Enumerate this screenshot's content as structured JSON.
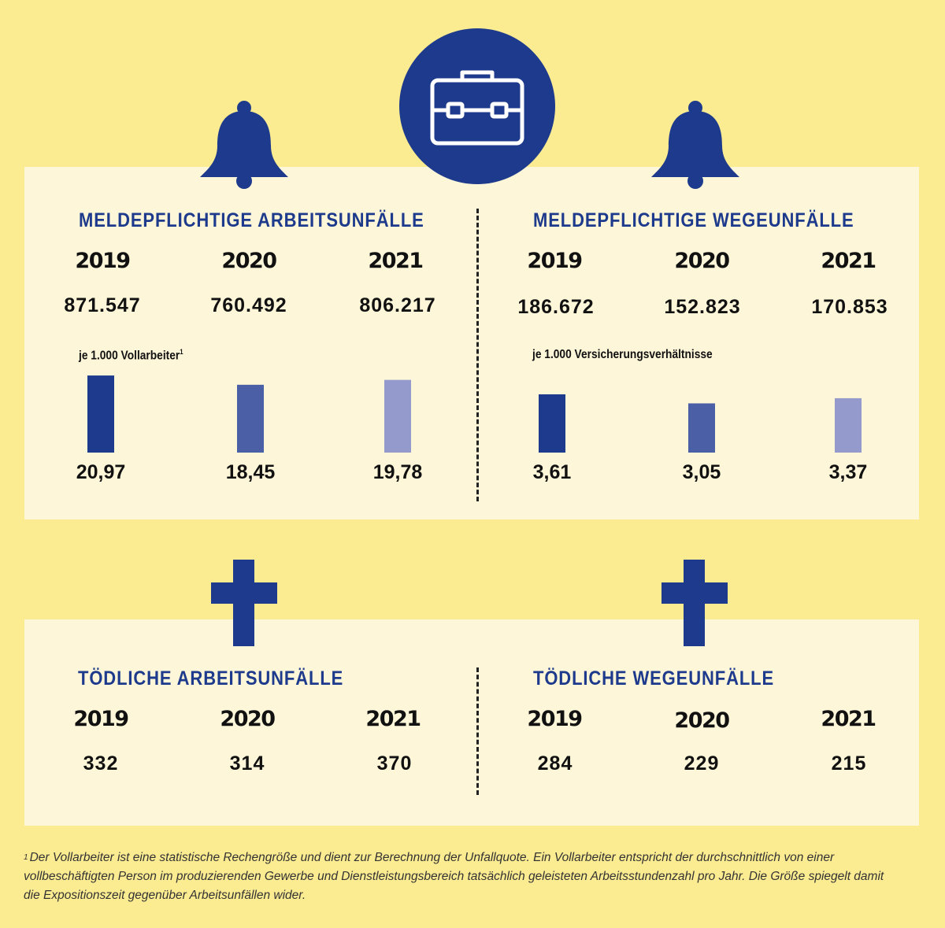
{
  "colors": {
    "background": "#fbeb91",
    "panel": "#fdf6d8",
    "title": "#1d3a8c",
    "icon": "#1d3a8c",
    "bar_2019": "#1d3a8c",
    "bar_2020": "#4b5fa6",
    "bar_2021": "#949bcc"
  },
  "icons": {
    "top": "briefcase-icon",
    "left_top": "bell-icon",
    "right_top": "bell-icon",
    "left_bottom": "cross-icon",
    "right_bottom": "cross-icon"
  },
  "sections": {
    "work_accidents": {
      "title": "MELDEPFLICHTIGE ARBEITSUNFÄLLE",
      "years": [
        "2019",
        "2020",
        "2021"
      ],
      "totals": [
        "871.547",
        "760.492",
        "806.217"
      ],
      "rate_label": "je 1.000 Vollarbeiter",
      "rate_footnote_mark": "1"
    },
    "commute_accidents": {
      "title": "MELDEPFLICHTIGE WEGEUNFÄLLE",
      "years": [
        "2019",
        "2020",
        "2021"
      ],
      "totals": [
        "186.672",
        "152.823",
        "170.853"
      ],
      "rate_label": "je 1.000 Versicherungsverhältnisse"
    },
    "fatal_work": {
      "title": "TÖDLICHE ARBEITSUNFÄLLE",
      "years": [
        "2019",
        "2020",
        "2021"
      ],
      "totals": [
        "332",
        "314",
        "370"
      ]
    },
    "fatal_commute": {
      "title": "TÖDLICHE WEGEUNFÄLLE",
      "years": [
        "2019",
        "2020",
        "2021"
      ],
      "totals": [
        "284",
        "229",
        "215"
      ]
    }
  },
  "chart_data": [
    {
      "type": "bar",
      "categories": [
        "2019",
        "2020",
        "2021"
      ],
      "values": [
        20.97,
        18.45,
        19.78
      ],
      "value_labels": [
        "20,97",
        "18,45",
        "19,78"
      ],
      "ylabel": "je 1.000 Vollarbeiter"
    },
    {
      "type": "bar",
      "categories": [
        "2019",
        "2020",
        "2021"
      ],
      "values": [
        3.61,
        3.05,
        3.37
      ],
      "value_labels": [
        "3,61",
        "3,05",
        "3,37"
      ],
      "ylabel": "je 1.000 Versicherungsverhältnisse"
    }
  ],
  "footnote": {
    "mark": "1",
    "text": "Der Vollarbeiter ist eine statistische Rechengröße und dient zur Berechnung der Unfallquote. Ein Vollarbeiter entspricht der durchschnittlich von einer vollbeschäftigten Person im produzierenden Gewerbe und Dienstleistungsbereich tatsächlich geleisteten Arbeitsstundenzahl pro Jahr. Die Größe spiegelt damit die Expositionszeit gegenüber Arbeitsunfällen wider."
  }
}
